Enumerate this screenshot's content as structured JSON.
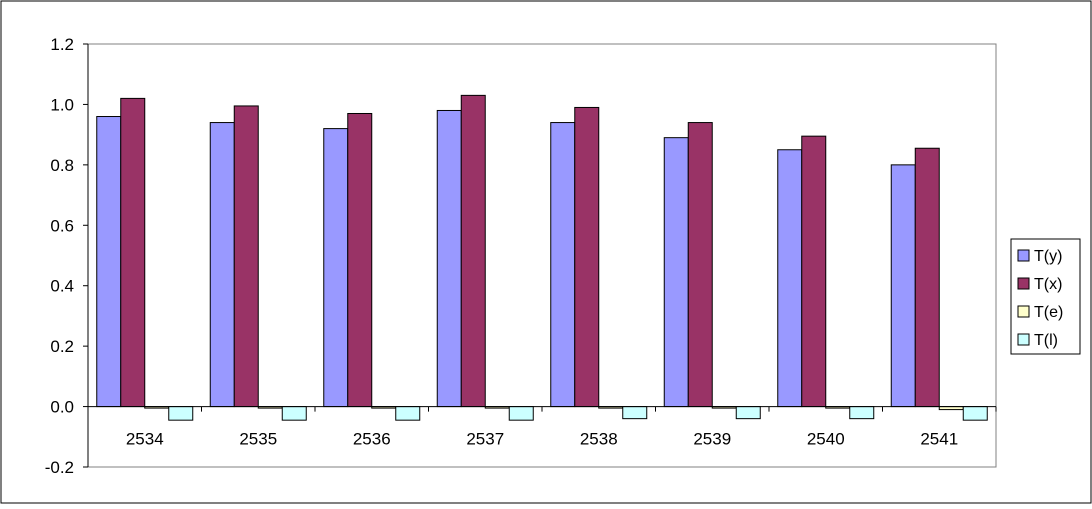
{
  "chart_data": {
    "type": "bar",
    "categories": [
      "2534",
      "2535",
      "2536",
      "2537",
      "2538",
      "2539",
      "2540",
      "2541"
    ],
    "series": [
      {
        "name": "T(y)",
        "color": "#9999ff",
        "values": [
          0.96,
          0.94,
          0.92,
          0.98,
          0.94,
          0.89,
          0.85,
          0.8
        ]
      },
      {
        "name": "T(x)",
        "color": "#993366",
        "values": [
          1.02,
          0.995,
          0.97,
          1.03,
          0.99,
          0.94,
          0.895,
          0.855
        ]
      },
      {
        "name": "T(e)",
        "color": "#ffffcc",
        "values": [
          -0.005,
          -0.005,
          -0.005,
          -0.005,
          -0.005,
          -0.005,
          -0.005,
          -0.01
        ]
      },
      {
        "name": "T(l)",
        "color": "#ccffff",
        "values": [
          -0.045,
          -0.045,
          -0.045,
          -0.045,
          -0.04,
          -0.04,
          -0.04,
          -0.045
        ]
      }
    ],
    "ylim": [
      -0.2,
      1.2
    ],
    "yticks": [
      "1.2",
      "1.0",
      "0.8",
      "0.6",
      "0.4",
      "0.2",
      "0.0",
      "-0.2"
    ],
    "ytick_values": [
      1.2,
      1.0,
      0.8,
      0.6,
      0.4,
      0.2,
      0.0,
      -0.2
    ],
    "grid": false,
    "legend_position": "right",
    "title": "",
    "xlabel": "",
    "ylabel": ""
  }
}
